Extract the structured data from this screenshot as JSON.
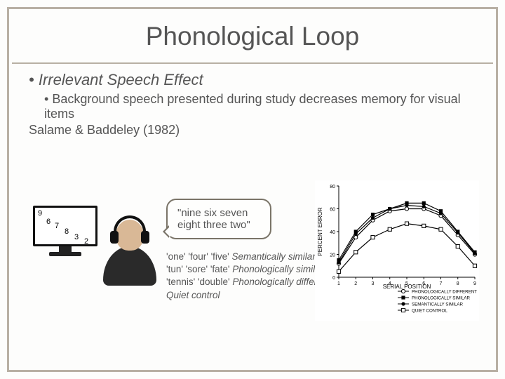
{
  "title": "Phonological Loop",
  "subtitle": "Irrelevant Speech Effect",
  "body": "Background speech presented during study decreases memory for visual items",
  "reference": "Salame & Baddeley (1982)",
  "digits": [
    "9",
    "6",
    "7",
    "8",
    "3",
    "2"
  ],
  "speech": "\"nine six seven eight three two\"",
  "conditions": [
    {
      "examples": "'one' 'four' 'five'",
      "tag": "Semantically similar"
    },
    {
      "examples": "'tun' 'sore' 'fate'",
      "tag": "Phonologically similar"
    },
    {
      "examples": "'tennis' 'double'",
      "tag": "Phonologically different"
    },
    {
      "examples": "",
      "tag": "Quiet control"
    }
  ],
  "chart": {
    "type": "line",
    "xlabel": "SERIAL POSITION",
    "ylabel": "PERCENT ERROR",
    "x": [
      1,
      2,
      3,
      4,
      5,
      6,
      7,
      8,
      9
    ],
    "xlim": [
      1,
      9
    ],
    "ylim": [
      0,
      80
    ],
    "ytick_step": 20,
    "background_color": "#ffffff",
    "line_color": "#000000",
    "axis_color": "#000000",
    "series": [
      {
        "name": "PHONOLOGICALLY DIFFERENT",
        "marker": "circle-open",
        "y": [
          12,
          35,
          50,
          58,
          60,
          60,
          54,
          37,
          20
        ]
      },
      {
        "name": "PHONOLOGICALLY SIMILAR",
        "marker": "square-filled",
        "y": [
          15,
          40,
          55,
          60,
          65,
          65,
          58,
          40,
          22
        ]
      },
      {
        "name": "SEMANTICALLY SIMILAR",
        "marker": "circle-filled",
        "y": [
          13,
          38,
          52,
          60,
          63,
          62,
          56,
          39,
          21
        ]
      },
      {
        "name": "QUIET CONTROL",
        "marker": "square-open",
        "y": [
          5,
          22,
          35,
          42,
          47,
          45,
          42,
          27,
          10
        ]
      }
    ],
    "title_fontsize": 10,
    "label_fontsize": 8
  },
  "colors": {
    "frame": "#b8b0a4",
    "text": "#555555",
    "bg": "#fdfdfc"
  }
}
